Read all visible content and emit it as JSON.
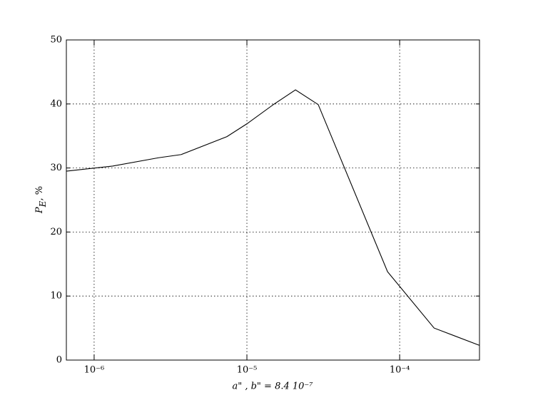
{
  "chart_data": {
    "type": "line",
    "x_scale": "log",
    "grid": true,
    "xlabel": "a\" , b\" = 8.4 10⁻⁷",
    "ylabel": "P_E, %",
    "x": [
      6.58e-07,
      1.32e-06,
      2.64e-06,
      3.72e-06,
      7.4e-06,
      1e-05,
      1.49e-05,
      2.08e-05,
      2.93e-05,
      8.33e-05,
      0.000168,
      0.000333
    ],
    "series": [
      {
        "color": "#000000",
        "values": [
          29.5,
          30.3,
          31.6,
          32.1,
          34.9,
          36.9,
          39.9,
          42.2,
          39.9,
          13.8,
          5.0,
          2.3
        ]
      }
    ],
    "xlim": [
      6.58e-07,
      0.000333
    ],
    "xticks": [
      {
        "value": 1e-06,
        "label": "10⁻⁶"
      },
      {
        "value": 1e-05,
        "label": "10⁻⁵"
      },
      {
        "value": 0.0001,
        "label": "10⁻⁴"
      }
    ],
    "ylim": [
      0,
      50
    ],
    "yticks": [
      0,
      10,
      20,
      30,
      40,
      50
    ]
  }
}
